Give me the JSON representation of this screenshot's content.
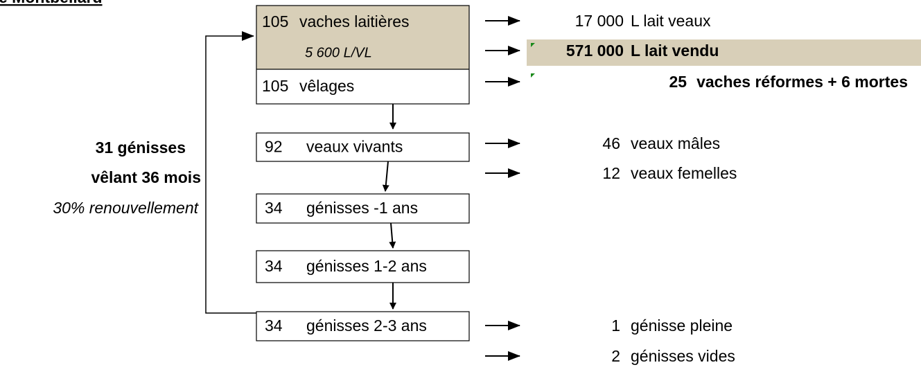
{
  "title": "e Montbéliard",
  "herd": {
    "count": "105",
    "label": "vaches laitières",
    "yield": "5 600 L/VL"
  },
  "calvings": {
    "count": "105",
    "label": "vêlages"
  },
  "boxes": [
    {
      "count": "92",
      "label": "veaux vivants"
    },
    {
      "count": "34",
      "label": "génisses -1 ans"
    },
    {
      "count": "34",
      "label": "génisses 1-2 ans"
    },
    {
      "count": "34",
      "label": "génisses 2-3 ans"
    }
  ],
  "outputs": [
    {
      "amount": "17 000",
      "label": "L lait veaux"
    },
    {
      "amount": "571 000",
      "label": "L lait vendu"
    },
    {
      "amount": "25",
      "label": "vaches réformes + 6 mortes"
    },
    {
      "amount": "46",
      "label": "veaux mâles"
    },
    {
      "amount": "12",
      "label": "veaux femelles"
    },
    {
      "amount": "1",
      "label": "génisse pleine"
    },
    {
      "amount": "2",
      "label": "génisses vides"
    }
  ],
  "renewal": {
    "heifers": "31 génisses",
    "calving_age": "vêlant 36 mois",
    "rate": "30% renouvellement"
  }
}
